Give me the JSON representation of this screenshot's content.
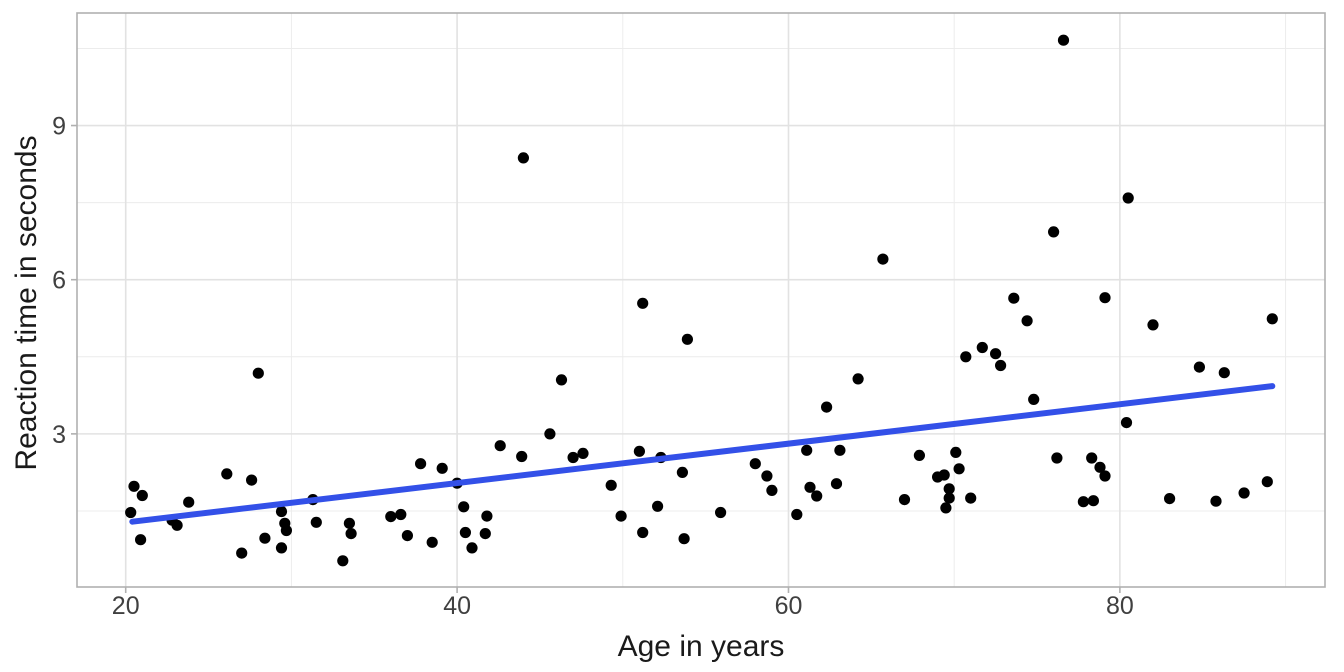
{
  "figure": {
    "background": "#FFFFFF"
  },
  "chart_data": {
    "type": "scatter",
    "title": "",
    "xlabel": "Age in years",
    "ylabel": "Reaction time in seconds",
    "xlim": [
      17.06,
      92.38
    ],
    "ylim": [
      0.02,
      11.19
    ],
    "x_major_ticks": [
      20,
      40,
      60,
      80
    ],
    "x_minor_ticks": [
      30,
      50,
      70,
      90
    ],
    "y_major_ticks": [
      3,
      6,
      9
    ],
    "y_minor_ticks": [
      1.5,
      4.5,
      7.5,
      10.5
    ],
    "grid": "major+minor",
    "legend": "none",
    "series": [
      {
        "name": "observations",
        "marker": "filled-circle",
        "points": [
          [
            20.5,
            1.98
          ],
          [
            21.0,
            1.8
          ],
          [
            20.3,
            1.47
          ],
          [
            20.9,
            0.94
          ],
          [
            22.8,
            1.32
          ],
          [
            23.1,
            1.22
          ],
          [
            23.8,
            1.67
          ],
          [
            26.1,
            2.22
          ],
          [
            27.6,
            2.1
          ],
          [
            27.0,
            0.68
          ],
          [
            28.4,
            0.97
          ],
          [
            28.0,
            4.18
          ],
          [
            29.4,
            1.49
          ],
          [
            29.6,
            1.26
          ],
          [
            29.7,
            1.12
          ],
          [
            29.4,
            0.78
          ],
          [
            31.3,
            1.72
          ],
          [
            31.5,
            1.28
          ],
          [
            33.5,
            1.26
          ],
          [
            33.6,
            1.06
          ],
          [
            33.1,
            0.53
          ],
          [
            36.0,
            1.39
          ],
          [
            36.6,
            1.43
          ],
          [
            37.0,
            1.02
          ],
          [
            38.5,
            0.89
          ],
          [
            37.8,
            2.42
          ],
          [
            39.1,
            2.33
          ],
          [
            40.0,
            2.04
          ],
          [
            40.4,
            1.58
          ],
          [
            41.8,
            1.4
          ],
          [
            40.5,
            1.08
          ],
          [
            41.7,
            1.06
          ],
          [
            40.9,
            0.78
          ],
          [
            42.6,
            2.77
          ],
          [
            43.9,
            2.56
          ],
          [
            44.0,
            8.37
          ],
          [
            45.6,
            3.0
          ],
          [
            46.3,
            4.05
          ],
          [
            47.0,
            2.54
          ],
          [
            47.6,
            2.62
          ],
          [
            49.3,
            2.0
          ],
          [
            49.9,
            1.4
          ],
          [
            51.0,
            2.66
          ],
          [
            51.2,
            5.54
          ],
          [
            51.2,
            1.08
          ],
          [
            52.3,
            2.54
          ],
          [
            52.1,
            1.59
          ],
          [
            53.6,
            2.25
          ],
          [
            53.9,
            4.84
          ],
          [
            53.7,
            0.96
          ],
          [
            55.9,
            1.47
          ],
          [
            58.0,
            2.42
          ],
          [
            58.7,
            2.18
          ],
          [
            59.0,
            1.9
          ],
          [
            61.1,
            2.68
          ],
          [
            61.3,
            1.96
          ],
          [
            61.7,
            1.79
          ],
          [
            60.5,
            1.43
          ],
          [
            62.9,
            2.03
          ],
          [
            63.1,
            2.68
          ],
          [
            62.3,
            3.52
          ],
          [
            64.2,
            4.07
          ],
          [
            65.7,
            6.4
          ],
          [
            67.9,
            2.58
          ],
          [
            67.0,
            1.72
          ],
          [
            69.0,
            2.16
          ],
          [
            69.4,
            2.2
          ],
          [
            69.7,
            1.93
          ],
          [
            69.7,
            1.75
          ],
          [
            69.5,
            1.56
          ],
          [
            70.1,
            2.64
          ],
          [
            70.3,
            2.32
          ],
          [
            71.0,
            1.75
          ],
          [
            70.7,
            4.5
          ],
          [
            71.7,
            4.68
          ],
          [
            72.5,
            4.56
          ],
          [
            72.8,
            4.33
          ],
          [
            73.6,
            5.64
          ],
          [
            74.4,
            5.2
          ],
          [
            74.8,
            3.67
          ],
          [
            76.0,
            6.93
          ],
          [
            76.6,
            10.66
          ],
          [
            76.2,
            2.53
          ],
          [
            78.3,
            2.53
          ],
          [
            78.8,
            2.35
          ],
          [
            79.1,
            2.18
          ],
          [
            77.8,
            1.68
          ],
          [
            78.4,
            1.7
          ],
          [
            79.1,
            5.65
          ],
          [
            80.5,
            7.59
          ],
          [
            80.4,
            3.22
          ],
          [
            82.0,
            5.12
          ],
          [
            83.0,
            1.74
          ],
          [
            85.8,
            1.69
          ],
          [
            87.5,
            1.85
          ],
          [
            88.9,
            2.07
          ],
          [
            89.2,
            5.24
          ],
          [
            84.8,
            4.3
          ],
          [
            86.3,
            4.19
          ]
        ]
      }
    ],
    "trend_line": {
      "name": "linear-fit",
      "x": [
        20.4,
        89.2
      ],
      "y": [
        1.29,
        3.93
      ]
    },
    "colors": {
      "point": "#000000",
      "trend": "#3350E8",
      "grid_major": "#E2E2E2",
      "grid_minor": "#ECECEC",
      "panel_border": "#B0B0B0",
      "tick_mark": "#B0B0B0",
      "tick_label": "#404040",
      "axis_title": "#1A1A1A",
      "panel_background": "#FFFFFF"
    }
  }
}
